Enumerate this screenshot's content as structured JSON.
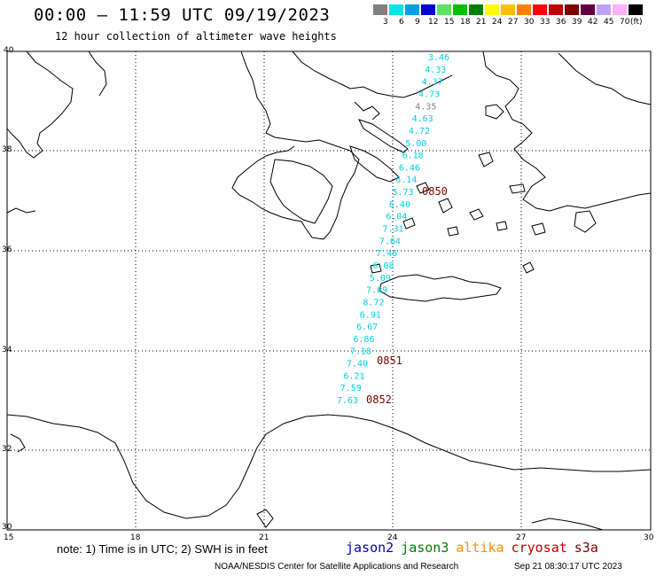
{
  "header": {
    "title": "00:00 – 11:59 UTC 09/19/2023",
    "subtitle": "12 hour collection of altimeter wave heights"
  },
  "legend": {
    "labels": [
      "3",
      "6",
      "9",
      "12",
      "15",
      "18",
      "21",
      "24",
      "27",
      "30",
      "33",
      "36",
      "39",
      "42",
      "45",
      "70",
      "(ft)"
    ],
    "colors": [
      "#808080",
      "#00e5e5",
      "#00a0e0",
      "#0000d0",
      "#60e060",
      "#00c000",
      "#008000",
      "#ffff00",
      "#ffc000",
      "#ff8000",
      "#ff0000",
      "#c00000",
      "#800000",
      "#600040",
      "#c0a0ff",
      "#ffb0ff",
      "#000000"
    ]
  },
  "axes": {
    "lat_labels": [
      "40",
      "38",
      "36",
      "34",
      "32",
      "30"
    ],
    "lon_labels": [
      "15",
      "18",
      "21",
      "24",
      "27",
      "30"
    ]
  },
  "colors": {
    "track_teal": "#00d0e0",
    "time_red": "#800000",
    "land": "#ffffff",
    "coast": "#000000",
    "grey_label": "#808080"
  },
  "track": {
    "values": [
      "3.46",
      "4.33",
      "4.37",
      "4.73",
      "4.35",
      "4.63",
      "4.72",
      "5.00",
      "6.18",
      "6.46",
      "6.14",
      "5.73",
      "6.40",
      "6.04",
      "7.31",
      "7.64",
      "7.46",
      "6.08",
      "5.09",
      "7.09",
      "8.72",
      "6.91",
      "6.67",
      "6.86",
      "7.18",
      "7.40",
      "6.21",
      "7.59",
      "7.63"
    ],
    "times": [
      "0850",
      "0851",
      "0852"
    ]
  },
  "footer": {
    "note": "note: 1) Time is in UTC; 2) SWH is in feet",
    "satellites": [
      {
        "name": "jason2",
        "color": "#0000c0"
      },
      {
        "name": "jason3",
        "color": "#008000"
      },
      {
        "name": "altika",
        "color": "#ff9000"
      },
      {
        "name": "cryosat",
        "color": "#c00000"
      },
      {
        "name": "s3a",
        "color": "#800000"
      }
    ],
    "credit": "NOAA/NESDIS Center for Satellite Applications and Research",
    "timestamp": "Sep 21 08:30:17 UTC 2023"
  }
}
